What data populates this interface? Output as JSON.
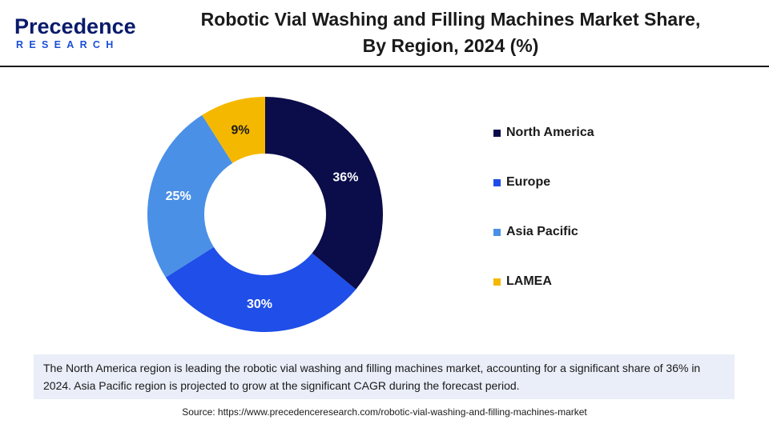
{
  "logo": {
    "main": "Precedence",
    "sub": "RESEARCH"
  },
  "title_line1": "Robotic Vial Washing and Filling Machines Market Share,",
  "title_line2": "By Region, 2024 (%)",
  "chart_data": {
    "type": "pie",
    "donut": true,
    "start_angle_deg": 0,
    "direction": "clockwise",
    "categories": [
      "North America",
      "Europe",
      "Asia Pacific",
      "LAMEA"
    ],
    "values": [
      36,
      30,
      25,
      9
    ],
    "labels": [
      "36%",
      "30%",
      "25%",
      "9%"
    ],
    "colors": [
      "#0b0c4a",
      "#1f4ee8",
      "#4a90e6",
      "#f5b800"
    ],
    "label_colors": [
      "#ffffff",
      "#ffffff",
      "#ffffff",
      "#1a1a1a"
    ],
    "legend_placement": "right",
    "unit": "%"
  },
  "note": "The North America region is leading the robotic vial washing and filling machines market, accounting for a significant share of 36% in 2024. Asia Pacific region is projected to grow at the significant CAGR during the forecast period.",
  "source": "Source: https://www.precedenceresearch.com/robotic-vial-washing-and-filling-machines-market"
}
